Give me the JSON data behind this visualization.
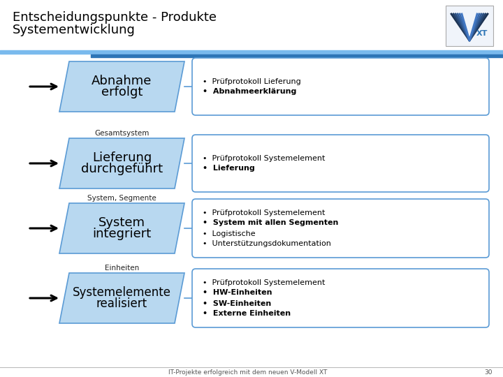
{
  "title_line1": "Entscheidungspunkte - Produkte",
  "title_line2": "Systementwicklung",
  "bg_color": "#ffffff",
  "parallelogram_color": "#b8d8f0",
  "parallelogram_edge_color": "#5b9bd5",
  "box_color": "#ffffff",
  "box_edge_color": "#5b9bd5",
  "header_bar_color1": "#7abaed",
  "header_bar_color2": "#2e75b6",
  "rows": [
    {
      "label_above": "",
      "shape_text_line1": "Abnahme",
      "shape_text_line2": "erfolgt",
      "shape_fontsize": 13,
      "bullet_items": [
        {
          "text": "Prüfprotokoll Lieferung",
          "bold": false
        },
        {
          "text": "Abnahmeerklärung",
          "bold": true
        }
      ]
    },
    {
      "label_above": "Gesamtsystem",
      "shape_text_line1": "Lieferung",
      "shape_text_line2": "durchgeführt",
      "shape_fontsize": 13,
      "bullet_items": [
        {
          "text": "Prüfprotokoll Systemelement",
          "bold": false
        },
        {
          "text": "Lieferung",
          "bold": true
        }
      ]
    },
    {
      "label_above": "System, Segmente",
      "shape_text_line1": "System",
      "shape_text_line2": "integriert",
      "shape_fontsize": 13,
      "bullet_items": [
        {
          "text": "Prüfprotokoll Systemelement",
          "bold": false
        },
        {
          "text": "System mit allen Segmenten",
          "bold": true
        },
        {
          "text": "Logistische",
          "bold": false
        },
        {
          "text": "Unterstützungsdokumentation",
          "bold": false
        }
      ]
    },
    {
      "label_above": "Einheiten",
      "shape_text_line1": "Systemelemente",
      "shape_text_line2": "realisiert",
      "shape_fontsize": 12,
      "bullet_items": [
        {
          "text": "Prüfprotokoll Systemelement",
          "bold": false
        },
        {
          "text": "HW-Einheiten",
          "bold": true
        },
        {
          "text": "SW-Einheiten",
          "bold": true
        },
        {
          "text": "Externe Einheiten",
          "bold": true
        }
      ]
    }
  ],
  "footer_text": "IT-Projekte erfolgreich mit dem neuen V-Modell XT",
  "footer_page": "30",
  "title_fontsize": 13,
  "bullet_fontsize": 8,
  "label_fontsize": 7.5
}
